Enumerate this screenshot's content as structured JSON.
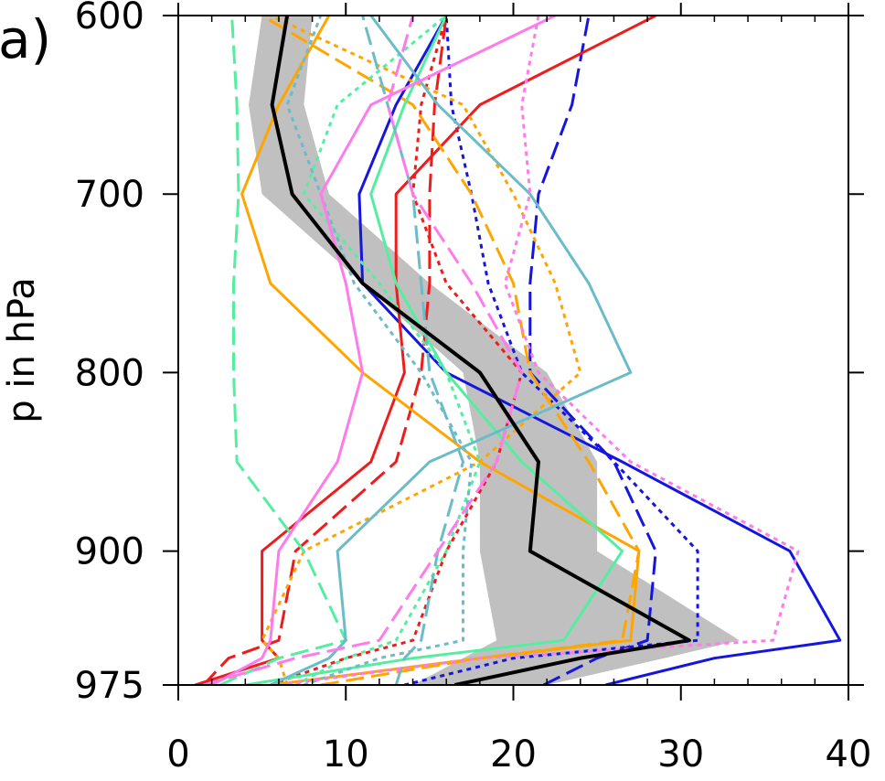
{
  "panel_label": "a)",
  "chart_data": {
    "type": "line",
    "title": "",
    "xlabel": "",
    "ylabel": "p in hPa",
    "xlim": [
      0,
      40
    ],
    "ylim": [
      975,
      600
    ],
    "y_inverted": true,
    "x_ticks": [
      0,
      10,
      20,
      30,
      40
    ],
    "x_tick_labels": [
      "0",
      "10",
      "20",
      "30",
      "40"
    ],
    "y_ticks": [
      600,
      700,
      800,
      900,
      975
    ],
    "y_tick_labels": [
      "600",
      "700",
      "800",
      "900",
      "975"
    ],
    "grid": false,
    "legend": "none",
    "levels": [
      975,
      960,
      950,
      900,
      850,
      800,
      750,
      700,
      650,
      600
    ],
    "envelope": {
      "color": "#c0c0c0",
      "lower": [
        14,
        17,
        19,
        18,
        18,
        17,
        11,
        5,
        4.2,
        5
      ],
      "upper": [
        22,
        29,
        33.5,
        25,
        25,
        22,
        15,
        9,
        7.5,
        8
      ]
    },
    "series": [
      {
        "color": "#000000",
        "style": "solid",
        "width": 4,
        "values": [
          16.5,
          24,
          30.5,
          21,
          21.5,
          18,
          11,
          6.8,
          5.6,
          6.5
        ]
      },
      {
        "color": "#1515e0",
        "style": "solid",
        "width": 3,
        "values": [
          25.5,
          32,
          39.5,
          36.5,
          26.5,
          16,
          11,
          10.8,
          13,
          16
        ]
      },
      {
        "color": "#1515e0",
        "style": "longdash",
        "width": 3,
        "values": [
          21.8,
          25,
          28,
          28.5,
          26,
          21,
          21,
          21.5,
          23.5,
          24.5
        ]
      },
      {
        "color": "#1515e0",
        "style": "dot",
        "width": 3,
        "values": [
          13.5,
          20,
          31,
          31,
          26,
          20.5,
          18.5,
          17.5,
          16.3,
          16
        ]
      },
      {
        "color": "#ee1c1c",
        "style": "solid",
        "width": 3,
        "values": [
          1,
          6,
          5,
          5,
          11.5,
          13.5,
          13,
          13,
          18,
          28.5
        ]
      },
      {
        "color": "#ee1c1c",
        "style": "longdash",
        "width": 3,
        "values": [
          1.5,
          3,
          6,
          7,
          13,
          14.5,
          15,
          15,
          15.3,
          16
        ]
      },
      {
        "color": "#ee1c1c",
        "style": "dot",
        "width": 3,
        "values": [
          5.5,
          10,
          14,
          16,
          19,
          20.5,
          16,
          14,
          14.5,
          16
        ]
      },
      {
        "color": "#ffa500",
        "style": "solid",
        "width": 3,
        "values": [
          5.5,
          18,
          27,
          27.5,
          18,
          11,
          5.5,
          3.8,
          6,
          9
        ]
      },
      {
        "color": "#ffa500",
        "style": "longdash",
        "width": 3,
        "values": [
          8.5,
          18,
          26.5,
          27.5,
          24.5,
          21,
          20,
          17.5,
          14,
          5
        ]
      },
      {
        "color": "#ffa500",
        "style": "dot",
        "width": 3,
        "values": [
          6.5,
          6,
          5,
          7.5,
          18,
          24,
          22.5,
          20,
          17,
          5.5
        ]
      },
      {
        "color": "#55eea0",
        "style": "solid",
        "width": 3,
        "values": [
          4,
          14,
          23,
          26.5,
          20.5,
          16,
          13,
          11.5,
          13.5,
          16
        ]
      },
      {
        "color": "#55eea0",
        "style": "longdash",
        "width": 3,
        "values": [
          2.5,
          6,
          10,
          7.5,
          3.5,
          3.3,
          3.3,
          3.6,
          3.5,
          3.2
        ]
      },
      {
        "color": "#55eea0",
        "style": "dot",
        "width": 3,
        "values": [
          7,
          10,
          13,
          16,
          18,
          16,
          12,
          7.5,
          9.5,
          16
        ]
      },
      {
        "color": "#6abcc8",
        "style": "solid",
        "width": 3,
        "values": [
          5.5,
          9,
          10,
          9.5,
          15,
          27,
          24.5,
          21,
          15.5,
          11.5
        ]
      },
      {
        "color": "#6abcc8",
        "style": "longdash",
        "width": 3,
        "values": [
          13,
          13.5,
          14.5,
          15.5,
          17,
          15,
          14.5,
          14,
          12.5,
          11
        ]
      },
      {
        "color": "#6abcc8",
        "style": "dot",
        "width": 3,
        "values": [
          7.5,
          12,
          17,
          17,
          17.5,
          14.5,
          10.5,
          8.5,
          6.5,
          8.5
        ]
      },
      {
        "color": "#ff7aeb",
        "style": "solid",
        "width": 3,
        "values": [
          2,
          5,
          5.5,
          6,
          9.5,
          11,
          10,
          8.5,
          11.5,
          22.5
        ]
      },
      {
        "color": "#ff7aeb",
        "style": "longdash",
        "width": 3,
        "values": [
          1.5,
          7,
          12,
          15.5,
          19,
          20.5,
          17.5,
          14,
          12.5,
          14
        ]
      },
      {
        "color": "#ff7aeb",
        "style": "dot",
        "width": 3,
        "values": [
          6,
          18,
          35.5,
          37,
          27,
          21.5,
          19.5,
          21,
          20.5,
          21.5
        ]
      }
    ]
  }
}
